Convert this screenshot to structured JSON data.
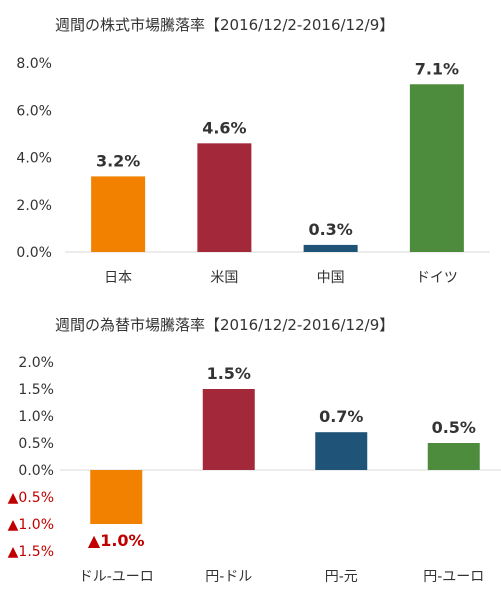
{
  "chart_data": [
    {
      "type": "bar",
      "title": "週間の株式市場騰落率【2016/12/2-2016/12/9】",
      "categories": [
        "日本",
        "米国",
        "中国",
        "ドイツ"
      ],
      "values": [
        3.2,
        4.6,
        0.3,
        7.1
      ],
      "data_labels": [
        "3.2%",
        "4.6%",
        "0.3%",
        "7.1%"
      ],
      "colors": [
        "#f28100",
        "#a3283a",
        "#1f5478",
        "#4c8c3c"
      ],
      "ylim": [
        0,
        8
      ],
      "yticks": [
        0,
        2,
        4,
        6,
        8
      ],
      "ytick_labels": [
        "0.0%",
        "2.0%",
        "4.0%",
        "6.0%",
        "8.0%"
      ],
      "grid": false,
      "xlabel": "",
      "ylabel": ""
    },
    {
      "type": "bar",
      "title": "週間の為替市場騰落率【2016/12/2-2016/12/9】",
      "categories": [
        "ドル-ユーロ",
        "円-ドル",
        "円-元",
        "円-ユーロ"
      ],
      "values": [
        -1.0,
        1.5,
        0.7,
        0.5
      ],
      "data_labels": [
        "▲1.0%",
        "1.5%",
        "0.7%",
        "0.5%"
      ],
      "colors": [
        "#f28100",
        "#a3283a",
        "#1f5478",
        "#4c8c3c"
      ],
      "ylim": [
        -1.5,
        2.0
      ],
      "yticks": [
        2.0,
        1.5,
        1.0,
        0.5,
        0.0,
        -0.5,
        -1.0,
        -1.5
      ],
      "ytick_labels": [
        "2.0%",
        "1.5%",
        "1.0%",
        "0.5%",
        "0.0%",
        "▲0.5%",
        "▲1.0%",
        "▲1.5%"
      ],
      "negative_color": "#c00000",
      "grid": false,
      "xlabel": "",
      "ylabel": ""
    }
  ]
}
